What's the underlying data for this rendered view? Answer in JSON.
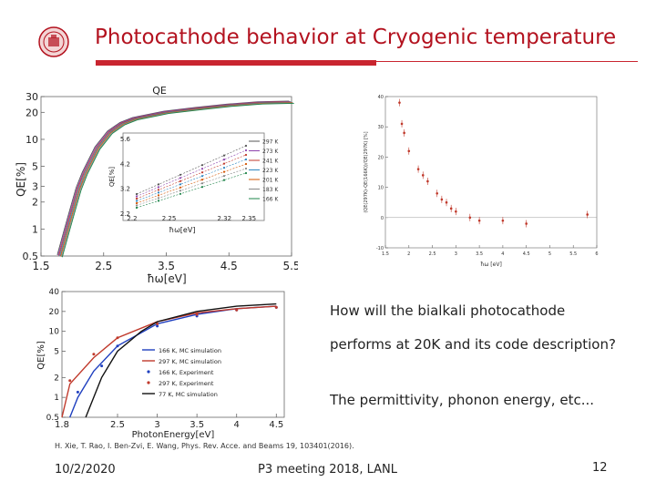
{
  "slide": {
    "title": "Photocathode behavior at Cryogenic temperature",
    "body_lines": [
      "How will the bialkali photocathode",
      "performs at 20K and its code description?",
      "The permittivity, phonon energy, etc..."
    ],
    "reference": "H. Xie, T. Rao, I. Ben-Zvi, E. Wang, Phys. Rev. Acce. and Beams 19, 103401(2016).",
    "footer": {
      "date": "10/2/2020",
      "meeting": "P3 meeting 2018, LANL",
      "page": "12"
    },
    "colors": {
      "title": "#b3121f",
      "rule": "#c9252f"
    }
  },
  "chart_data": [
    {
      "type": "line",
      "title": "QE",
      "xlabel": "ħω[eV]",
      "ylabel": "QE[%]",
      "xticks": [
        "1.5",
        "2.5",
        "3.5",
        "4.5",
        "5.5"
      ],
      "yticks": [
        "0.5",
        "1",
        "2",
        "3",
        "5",
        "10",
        "20",
        "30"
      ],
      "xlim": [
        1.5,
        5.5
      ],
      "ylim": [
        0.5,
        30
      ],
      "yscale": "log",
      "legend": [
        "297 K",
        "273 K",
        "241 K",
        "223 K",
        "201 K",
        "183 K",
        "166 K"
      ],
      "series_colors": [
        "#555555",
        "#8e44ad",
        "#c0392b",
        "#2e86c1",
        "#d35400",
        "#888888",
        "#1e8449"
      ],
      "x": [
        1.8,
        1.9,
        2.0,
        2.1,
        2.2,
        2.4,
        2.6,
        2.8,
        3.0,
        3.5,
        4.0,
        4.5,
        5.0,
        5.5
      ],
      "y": [
        0.5,
        0.9,
        1.6,
        2.8,
        4.2,
        8,
        12,
        15,
        17,
        20,
        22,
        24,
        25.5,
        26
      ],
      "inset": {
        "xlabel": "ħω[eV]",
        "ylabel": "QE[%]",
        "xticks": [
          "2.2",
          "2.25",
          "2.32",
          "2.35"
        ],
        "yticks": [
          "2.2",
          "3.2",
          "4.2",
          "5.6"
        ]
      }
    },
    {
      "type": "scatter",
      "xlabel": "ħω [eV]",
      "ylabel": "(QE(297K)-QE(166K))/QE(297K) [%]",
      "xticks": [
        "1.5",
        "2",
        "2.5",
        "3",
        "3.5",
        "4",
        "4.5",
        "5",
        "5.5",
        "6"
      ],
      "yticks": [
        "-10",
        "0",
        "10",
        "20",
        "30",
        "40"
      ],
      "xlim": [
        1.5,
        6
      ],
      "ylim": [
        -10,
        40
      ],
      "x": [
        1.8,
        1.85,
        1.9,
        2.0,
        2.2,
        2.3,
        2.4,
        2.6,
        2.7,
        2.8,
        2.9,
        3.0,
        3.3,
        3.5,
        4.0,
        4.5,
        5.8
      ],
      "y": [
        38,
        31,
        28,
        22,
        16,
        14,
        12,
        8,
        6,
        5,
        3,
        2,
        0,
        -1,
        -1,
        -2,
        1
      ]
    },
    {
      "type": "line",
      "xlabel": "PhotonEnergy[eV]",
      "ylabel": "QE[%]",
      "xticks": [
        "1.8",
        "2.5",
        "3",
        "3.5",
        "4",
        "4.5"
      ],
      "yticks": [
        "0.5",
        "1",
        "2",
        "5",
        "10",
        "20",
        "40"
      ],
      "xlim": [
        1.8,
        4.6
      ],
      "ylim": [
        0.5,
        40
      ],
      "yscale": "log",
      "legend_location": "center-right",
      "series": [
        {
          "name": "166 K, MC simulation",
          "color": "#1f3fbf",
          "marker": "line",
          "x": [
            1.9,
            2.0,
            2.2,
            2.5,
            3.0,
            3.5,
            4.0,
            4.5
          ],
          "y": [
            0.5,
            1.0,
            2.5,
            6,
            13,
            18,
            22,
            24
          ]
        },
        {
          "name": "297 K, MC simulation",
          "color": "#c0392b",
          "marker": "line",
          "x": [
            1.8,
            1.9,
            2.2,
            2.5,
            3.0,
            3.5,
            4.0,
            4.5
          ],
          "y": [
            0.5,
            1.6,
            4,
            8,
            14,
            19,
            22,
            24
          ]
        },
        {
          "name": "166 K, Experiment",
          "color": "#1f3fbf",
          "marker": "dot",
          "x": [
            2.0,
            2.3,
            2.5,
            3.0,
            3.5,
            4.0,
            4.5
          ],
          "y": [
            1.2,
            3,
            6,
            12,
            17,
            21,
            23
          ]
        },
        {
          "name": "297 K, Experiment",
          "color": "#c0392b",
          "marker": "dot",
          "x": [
            1.9,
            2.2,
            2.5,
            3.0,
            3.5,
            4.0,
            4.5
          ],
          "y": [
            1.8,
            4.5,
            8,
            13,
            18,
            21,
            23
          ]
        },
        {
          "name": "77 K, MC simulation",
          "color": "#111111",
          "marker": "line",
          "x": [
            2.1,
            2.3,
            2.5,
            2.8,
            3.0,
            3.5,
            4.0,
            4.5
          ],
          "y": [
            0.5,
            2,
            5,
            10,
            14,
            20,
            24,
            26
          ]
        }
      ]
    }
  ]
}
